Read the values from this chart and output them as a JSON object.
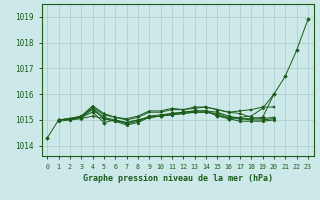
{
  "bg_color": "#cce8e8",
  "grid_color": "#aacccc",
  "line_color": "#1a5c1a",
  "marker_color": "#1a5c1a",
  "xlabel": "Graphe pression niveau de la mer (hPa)",
  "xlabel_color": "#1a5c1a",
  "ylabel_ticks": [
    1014,
    1015,
    1016,
    1017,
    1018,
    1019
  ],
  "xlim": [
    -0.5,
    23.5
  ],
  "ylim": [
    1013.6,
    1019.5
  ],
  "series": [
    {
      "data": [
        1014.3,
        1015.0,
        1015.05,
        1015.1,
        1015.3,
        1014.9,
        1015.0,
        1014.9,
        1015.0,
        1015.1,
        1015.15,
        1015.25,
        1015.3,
        1015.35,
        1015.35,
        1015.15,
        1015.05,
        1015.05,
        1015.05,
        1015.1,
        1016.0,
        1016.7,
        1017.7,
        1018.9
      ],
      "marker": "D"
    },
    {
      "data": [
        null,
        1015.0,
        1015.05,
        1015.1,
        1015.5,
        1015.2,
        1015.1,
        1015.0,
        1015.1,
        1015.3,
        1015.3,
        1015.4,
        1015.4,
        1015.5,
        1015.5,
        1015.4,
        1015.3,
        1015.35,
        1015.4,
        1015.5,
        1015.5,
        null,
        null,
        null
      ],
      "marker": "s"
    },
    {
      "data": [
        null,
        1015.0,
        1015.05,
        1015.15,
        1015.55,
        1015.25,
        1015.1,
        1015.05,
        1015.15,
        1015.35,
        1015.35,
        1015.45,
        1015.4,
        1015.45,
        1015.5,
        1015.4,
        1015.3,
        1015.25,
        1015.1,
        1015.05,
        1015.1,
        null,
        null,
        null
      ],
      "marker": "^"
    },
    {
      "data": [
        null,
        1015.0,
        1015.05,
        1015.15,
        1015.45,
        1015.1,
        1015.0,
        1014.85,
        1014.95,
        1015.15,
        1015.2,
        1015.25,
        1015.3,
        1015.35,
        1015.35,
        1015.3,
        1015.15,
        1015.05,
        1015.0,
        1015.0,
        1015.05,
        null,
        null,
        null
      ],
      "marker": "v"
    },
    {
      "data": [
        null,
        1014.95,
        1015.0,
        1015.1,
        1015.4,
        1015.05,
        1014.95,
        1014.8,
        1014.9,
        1015.1,
        1015.15,
        1015.2,
        1015.25,
        1015.3,
        1015.3,
        1015.2,
        1015.05,
        1014.95,
        1014.95,
        1014.95,
        1015.0,
        null,
        null,
        null
      ],
      "marker": "o"
    },
    {
      "data": [
        null,
        null,
        1015.0,
        1015.05,
        1015.15,
        1015.05,
        1014.95,
        1014.9,
        1015.0,
        1015.1,
        1015.15,
        1015.2,
        1015.25,
        1015.3,
        1015.3,
        1015.25,
        1015.1,
        1015.1,
        1015.15,
        1015.45,
        1016.0,
        null,
        null,
        null
      ],
      "marker": "P"
    }
  ],
  "xtick_labels": [
    "0",
    "1",
    "2",
    "3",
    "4",
    "5",
    "6",
    "7",
    "8",
    "9",
    "10",
    "11",
    "12",
    "13",
    "14",
    "15",
    "16",
    "17",
    "18",
    "19",
    "20",
    "21",
    "22",
    "23"
  ]
}
